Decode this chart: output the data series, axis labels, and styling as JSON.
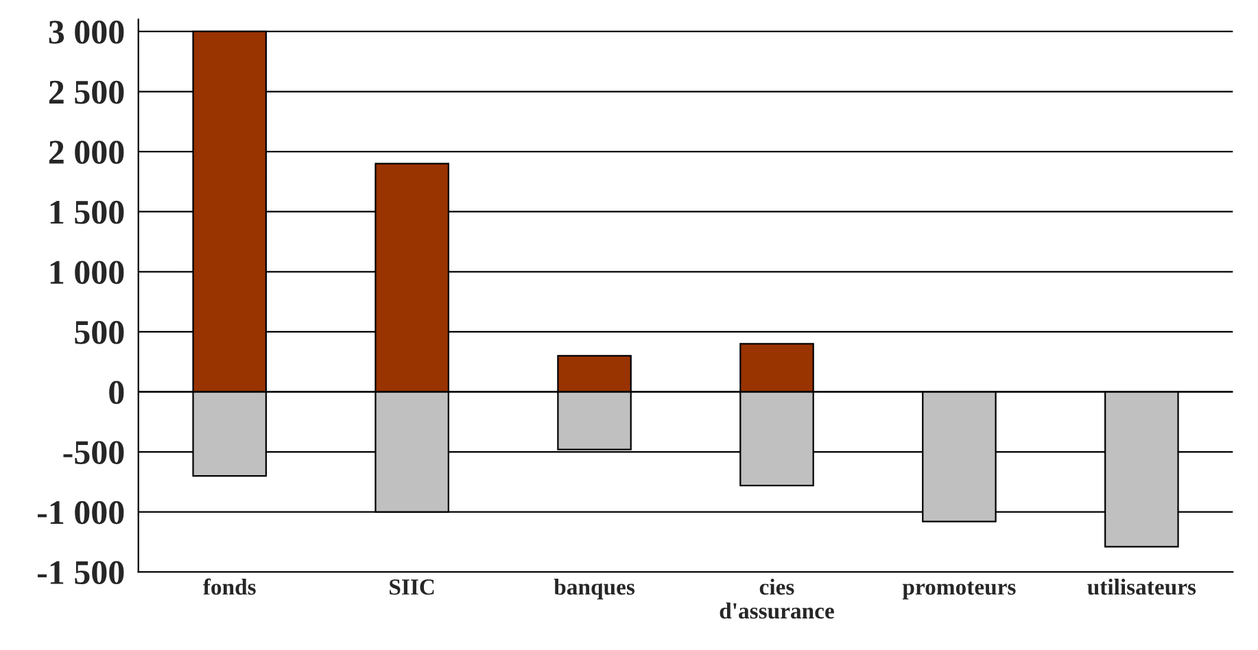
{
  "chart_data": {
    "type": "bar",
    "stacked": true,
    "categories": [
      "fonds",
      "SIIC",
      "banques",
      "cies\nd'assurance",
      "promoteurs",
      "utilisateurs"
    ],
    "series": [
      {
        "color": "#993300",
        "values": [
          3000,
          1900,
          300,
          400,
          null,
          null
        ]
      },
      {
        "color": "#c0c0c0",
        "values": [
          -700,
          -1000,
          -480,
          -780,
          -1080,
          -1290
        ]
      }
    ],
    "ylim": [
      -1500,
      3100
    ],
    "yticks": [
      {
        "value": -1500,
        "label": "-1 500"
      },
      {
        "value": -1000,
        "label": "-1 000"
      },
      {
        "value": -500,
        "label": "-500"
      },
      0,
      500,
      {
        "value": 1000,
        "label": "1 000"
      },
      {
        "value": 1500,
        "label": "1 500"
      },
      {
        "value": 2000,
        "label": "2 000"
      },
      {
        "value": 2500,
        "label": "2 500"
      },
      {
        "value": 3000,
        "label": "3 000"
      }
    ],
    "grid": "y",
    "legend": false
  }
}
